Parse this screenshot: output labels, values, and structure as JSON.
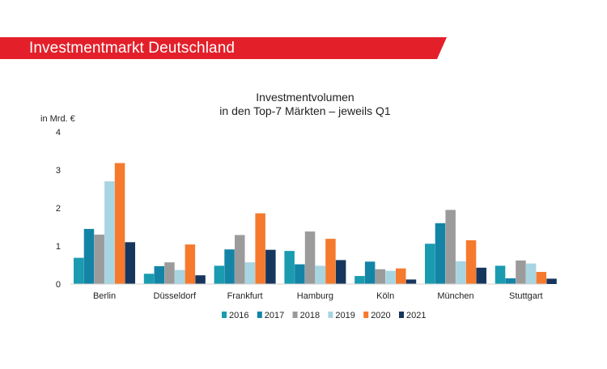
{
  "header": {
    "title": "Investmentmarkt Deutschland",
    "color": "#e3202a"
  },
  "chart_data": {
    "type": "bar",
    "title": "Investmentvolumen",
    "subtitle": "in den Top-7 Märkten – jeweils Q1",
    "ylabel": "in Mrd. €",
    "xlabel": "",
    "ylim": [
      0,
      4
    ],
    "yticks": [
      0,
      1,
      2,
      3,
      4
    ],
    "grid": false,
    "legend_position": "bottom",
    "categories": [
      "Berlin",
      "Düsseldorf",
      "Frankfurt",
      "Hamburg",
      "Köln",
      "München",
      "Stuttgart"
    ],
    "series": [
      {
        "name": "2016",
        "color": "#1a9bb0",
        "values": [
          0.69,
          0.27,
          0.48,
          0.87,
          0.21,
          1.06,
          0.48
        ]
      },
      {
        "name": "2017",
        "color": "#1484a6",
        "values": [
          1.45,
          0.47,
          0.91,
          0.52,
          0.59,
          1.6,
          0.15
        ]
      },
      {
        "name": "2018",
        "color": "#9b9b9b",
        "values": [
          1.3,
          0.57,
          1.29,
          1.38,
          0.39,
          1.95,
          0.62
        ]
      },
      {
        "name": "2019",
        "color": "#a7d5e2",
        "values": [
          2.7,
          0.37,
          0.57,
          0.48,
          0.35,
          0.6,
          0.54
        ]
      },
      {
        "name": "2020",
        "color": "#f57a2d",
        "values": [
          3.18,
          1.04,
          1.86,
          1.19,
          0.41,
          1.15,
          0.32
        ]
      },
      {
        "name": "2021",
        "color": "#17365d",
        "values": [
          1.1,
          0.23,
          0.9,
          0.63,
          0.12,
          0.43,
          0.14
        ]
      }
    ]
  }
}
